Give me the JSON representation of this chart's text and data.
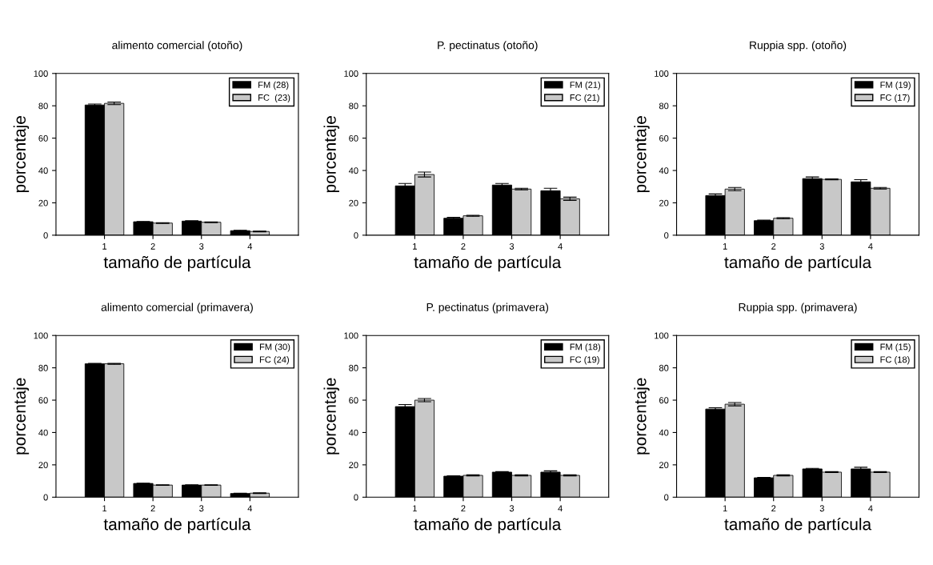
{
  "chart_data": [
    {
      "type": "bar",
      "title": "alimento comercial (otoño)",
      "xlabel": "tamaño de partícula",
      "ylabel": "porcentaje",
      "categories": [
        "1",
        "2",
        "3",
        "4"
      ],
      "ylim": [
        0,
        100
      ],
      "yticks": [
        0,
        20,
        40,
        60,
        80,
        100
      ],
      "legend": "top right",
      "series": [
        {
          "name": "FM (28)",
          "color": "#000000",
          "values": [
            80.5,
            8.3,
            8.7,
            2.8
          ],
          "errors": [
            0.6,
            0.2,
            0.2,
            0.2
          ]
        },
        {
          "name": "FC  (23)",
          "color": "#c8c8c8",
          "values": [
            81.5,
            7.5,
            8,
            2.3
          ],
          "errors": [
            0.8,
            0.2,
            0.2,
            0.2
          ]
        }
      ]
    },
    {
      "type": "bar",
      "title": "P. pectinatus (otoño)",
      "xlabel": "tamaño de partícula",
      "ylabel": "porcentaje",
      "categories": [
        "1",
        "2",
        "3",
        "4"
      ],
      "ylim": [
        0,
        100
      ],
      "yticks": [
        0,
        20,
        40,
        60,
        80,
        100
      ],
      "legend": "top right",
      "series": [
        {
          "name": "FM (21)",
          "color": "#000000",
          "values": [
            30.5,
            10.5,
            31,
            27.5
          ],
          "errors": [
            1.5,
            0.5,
            1,
            1.5
          ]
        },
        {
          "name": "FC (21)",
          "color": "#c8c8c8",
          "values": [
            37.5,
            12,
            28.5,
            22.5
          ],
          "errors": [
            1.5,
            0.3,
            0.5,
            1
          ]
        }
      ]
    },
    {
      "type": "bar",
      "title": "Ruppia spp. (otoño)",
      "xlabel": "tamaño de partícula",
      "ylabel": "porcentaje",
      "categories": [
        "1",
        "2",
        "3",
        "4"
      ],
      "ylim": [
        0,
        100
      ],
      "yticks": [
        0,
        20,
        40,
        60,
        80,
        100
      ],
      "legend": "top right",
      "series": [
        {
          "name": "FM (19)",
          "color": "#000000",
          "values": [
            24.5,
            9,
            35,
            33
          ],
          "errors": [
            1,
            0.3,
            1,
            1.3
          ]
        },
        {
          "name": "FC (17)",
          "color": "#c8c8c8",
          "values": [
            28.5,
            10.5,
            34.5,
            29
          ],
          "errors": [
            1,
            0.3,
            0.3,
            0.5
          ]
        }
      ]
    },
    {
      "type": "bar",
      "title": "alimento comercial (primavera)",
      "xlabel": "tamaño de partícula",
      "ylabel": "porcentaje",
      "categories": [
        "1",
        "2",
        "3",
        "4"
      ],
      "ylim": [
        0,
        100
      ],
      "yticks": [
        0,
        20,
        40,
        60,
        80,
        100
      ],
      "legend": "top right",
      "series": [
        {
          "name": "FM (30)",
          "color": "#000000",
          "values": [
            82.5,
            8.5,
            7.5,
            2.3
          ],
          "errors": [
            0.3,
            0.2,
            0.2,
            0.2
          ]
        },
        {
          "name": "FC (24)",
          "color": "#c8c8c8",
          "values": [
            82.5,
            7.5,
            7.5,
            2.5
          ],
          "errors": [
            0.3,
            0.2,
            0.2,
            0.2
          ]
        }
      ]
    },
    {
      "type": "bar",
      "title": "P. pectinatus (primavera)",
      "xlabel": "tamaño de partícula",
      "ylabel": "porcentaje",
      "categories": [
        "1",
        "2",
        "3",
        "4"
      ],
      "ylim": [
        0,
        100
      ],
      "yticks": [
        0,
        20,
        40,
        60,
        80,
        100
      ],
      "legend": "top right",
      "series": [
        {
          "name": "FM (18)",
          "color": "#000000",
          "values": [
            56,
            13,
            15.5,
            15.5
          ],
          "errors": [
            1.3,
            0.2,
            0.3,
            0.8
          ]
        },
        {
          "name": "FC (19)",
          "color": "#c8c8c8",
          "values": [
            60,
            13.5,
            13.5,
            13.5
          ],
          "errors": [
            1,
            0.3,
            0.3,
            0.3
          ]
        }
      ]
    },
    {
      "type": "bar",
      "title": "Ruppia spp. (primavera)",
      "xlabel": "tamaño de partícula",
      "ylabel": "porcentaje",
      "categories": [
        "1",
        "2",
        "3",
        "4"
      ],
      "ylim": [
        0,
        100
      ],
      "yticks": [
        0,
        20,
        40,
        60,
        80,
        100
      ],
      "legend": "top right",
      "series": [
        {
          "name": "FM (15)",
          "color": "#000000",
          "values": [
            54.5,
            12,
            17.5,
            17.5
          ],
          "errors": [
            0.8,
            0.2,
            0.3,
            1
          ]
        },
        {
          "name": "FC (18)",
          "color": "#c8c8c8",
          "values": [
            57.5,
            13.5,
            15.5,
            15.5
          ],
          "errors": [
            1,
            0.3,
            0.3,
            0.3
          ]
        }
      ]
    }
  ]
}
